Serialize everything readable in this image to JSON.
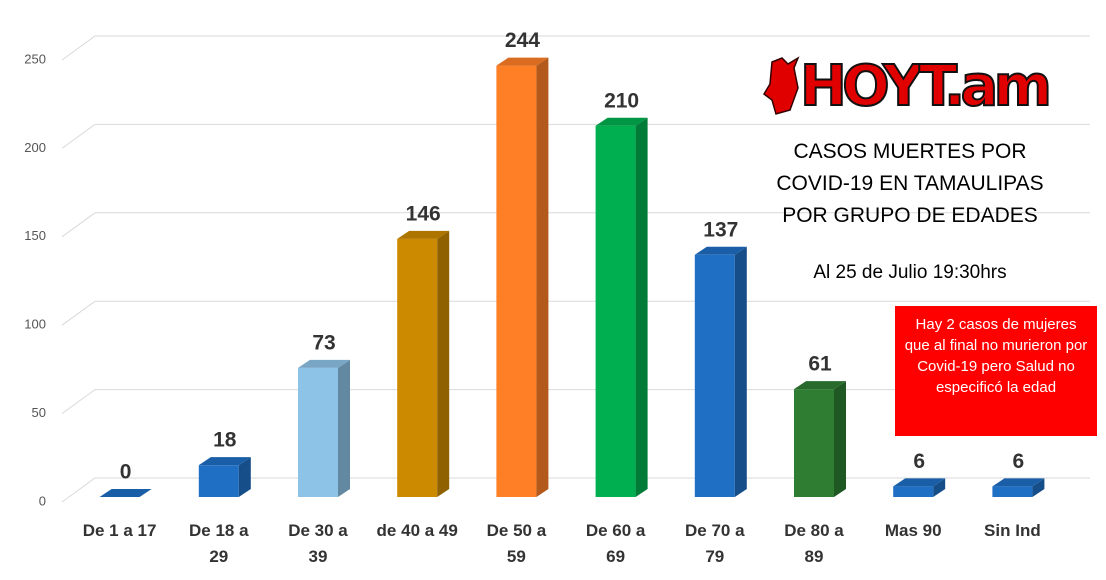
{
  "chart_data": {
    "type": "bar3d",
    "logo": "HOYT.am",
    "title": "CASOS MUERTES POR COVID-19 EN TAMAULIPAS POR GRUPO DE EDADES",
    "subtitle": "Al 25 de Julio 19:30hrs",
    "annotation": "Hay 2 casos de mujeres que al final no murieron por Covid-19 pero Salud no especificó la edad",
    "categories": [
      "De 1 a 17",
      "De 18 a 29",
      "De 30 a 39",
      "de 40 a 49",
      "De 50 a 59",
      "De 60 a 69",
      "De 70 a 79",
      "De 80 a 89",
      "Mas 90",
      "Sin Ind"
    ],
    "values": [
      0,
      18,
      73,
      146,
      244,
      210,
      137,
      61,
      6,
      6
    ],
    "colors": [
      "#1f6fc5",
      "#1f6fc5",
      "#8ec3e8",
      "#cc8a00",
      "#ff7f27",
      "#00b050",
      "#1f6fc5",
      "#2e7d32",
      "#1f6fc5",
      "#1f6fc5"
    ],
    "ylim": [
      0,
      250
    ],
    "yticks": [
      0,
      50,
      100,
      150,
      200,
      250
    ],
    "grid": true
  }
}
